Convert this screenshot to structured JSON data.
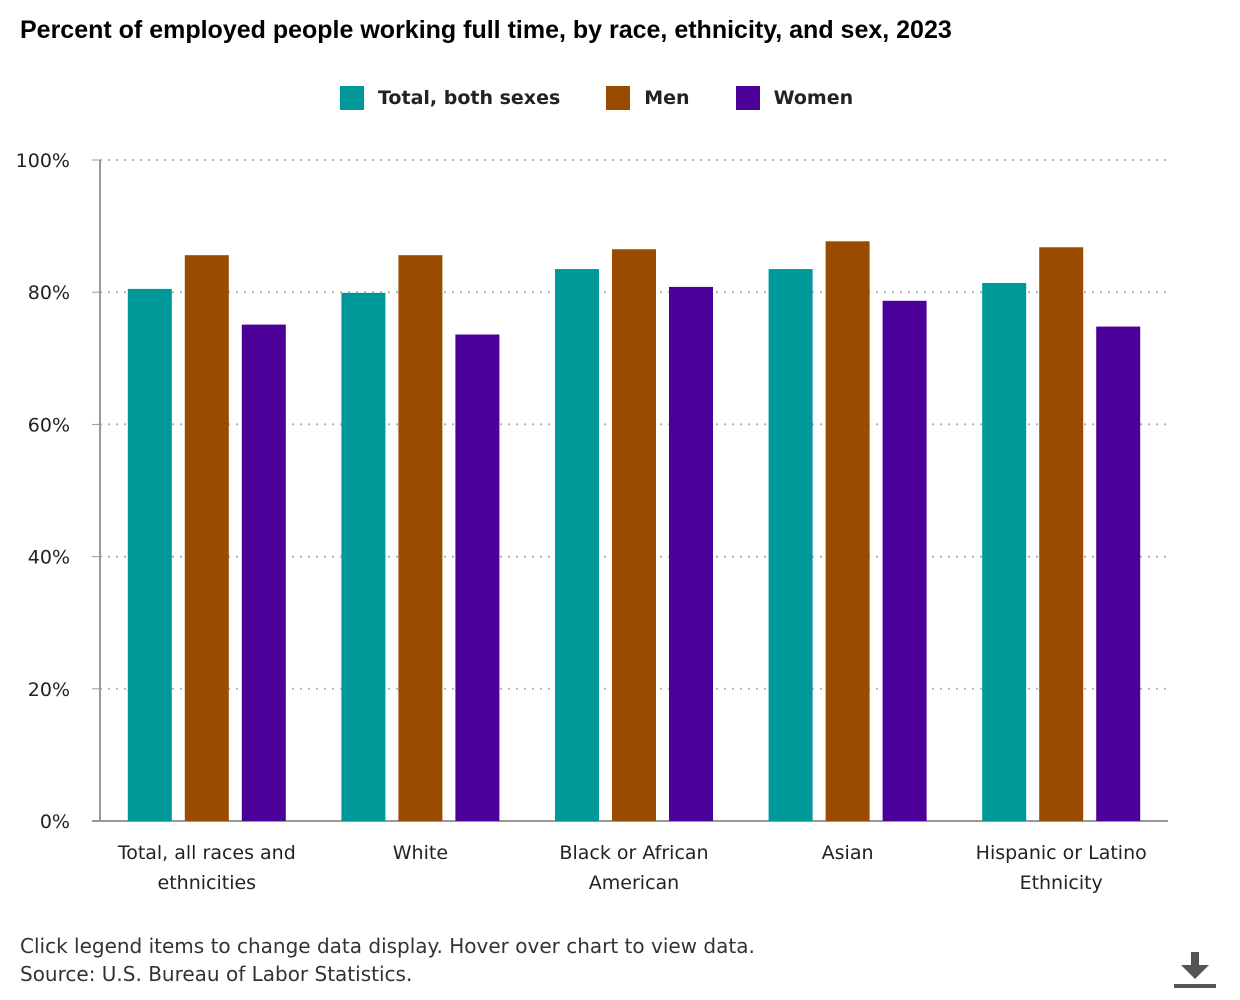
{
  "title": "Percent of employed people working full time, by race, ethnicity, and sex, 2023",
  "legend": [
    {
      "label": "Total, both sexes",
      "color": "#009999"
    },
    {
      "label": "Men",
      "color": "#994C00"
    },
    {
      "label": "Women",
      "color": "#4B0099"
    }
  ],
  "footer": {
    "instructions": "Click legend items to change data display. Hover over chart to view data.",
    "source": "Source: U.S. Bureau of Labor Statistics."
  },
  "download_icon": "download-icon",
  "chart_data": {
    "type": "bar",
    "title": "Percent of employed people working full time, by race, ethnicity, and sex, 2023",
    "xlabel": "",
    "ylabel": "",
    "ylim": [
      0,
      100
    ],
    "y_ticks": [
      "0%",
      "20%",
      "40%",
      "60%",
      "80%",
      "100%"
    ],
    "y_tick_values": [
      0,
      20,
      40,
      60,
      80,
      100
    ],
    "grid": true,
    "legend_position": "top-center",
    "categories": [
      [
        "Total, all races and",
        "ethnicities"
      ],
      [
        "White"
      ],
      [
        "Black or African",
        "American"
      ],
      [
        "Asian"
      ],
      [
        "Hispanic or Latino",
        "Ethnicity"
      ]
    ],
    "series": [
      {
        "name": "Total, both sexes",
        "color": "#009999",
        "values": [
          80.5,
          79.9,
          83.5,
          83.5,
          81.4
        ]
      },
      {
        "name": "Men",
        "color": "#994C00",
        "values": [
          85.6,
          85.6,
          86.5,
          87.7,
          86.8
        ]
      },
      {
        "name": "Women",
        "color": "#4B0099",
        "values": [
          75.1,
          73.6,
          80.8,
          78.7,
          74.8
        ]
      }
    ]
  }
}
